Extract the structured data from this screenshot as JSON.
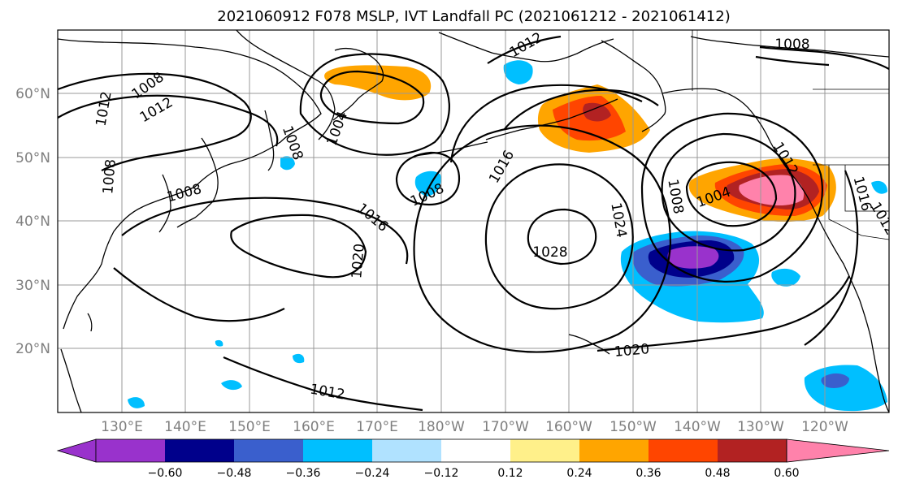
{
  "title": "2021060912 F078 MSLP, IVT Landfall PC (2021061212 - 2021061412)",
  "lat_labels": [
    "60°N",
    "50°N",
    "40°N",
    "30°N",
    "20°N"
  ],
  "lon_labels": [
    "130°E",
    "140°E",
    "150°E",
    "160°E",
    "170°E",
    "180°W",
    "170°W",
    "160°W",
    "150°W",
    "140°W",
    "130°W",
    "120°W"
  ],
  "isobar_labels": [
    "1008",
    "1012",
    "1012",
    "1004",
    "1008",
    "1008",
    "1008",
    "1008",
    "1016",
    "1020",
    "1008",
    "1016",
    "1012",
    "1028",
    "1024",
    "1008",
    "1004",
    "1012",
    "1012",
    "1008",
    "1020",
    "1012",
    "1016",
    "1012"
  ],
  "colorbar": {
    "tick_labels": [
      "−0.60",
      "−0.48",
      "−0.36",
      "−0.24",
      "−0.12",
      "0.12",
      "0.24",
      "0.36",
      "0.48",
      "0.60"
    ],
    "colors": [
      "#9932cc",
      "#00008b",
      "#3a5fcd",
      "#00bfff",
      "#b0e2ff",
      "#ffffff",
      "#fff08a",
      "#ffa500",
      "#ff4500",
      "#b22222",
      "#ff82ab"
    ]
  },
  "shading_colors": {
    "neg_light": "#00bfff",
    "neg_mid": "#3a5fcd",
    "neg_dark": "#00008b",
    "neg_min": "#9932cc",
    "pos_low": "#ffa500",
    "pos_mid": "#ff4500",
    "pos_high": "#b22222",
    "pos_max": "#ff82ab"
  }
}
